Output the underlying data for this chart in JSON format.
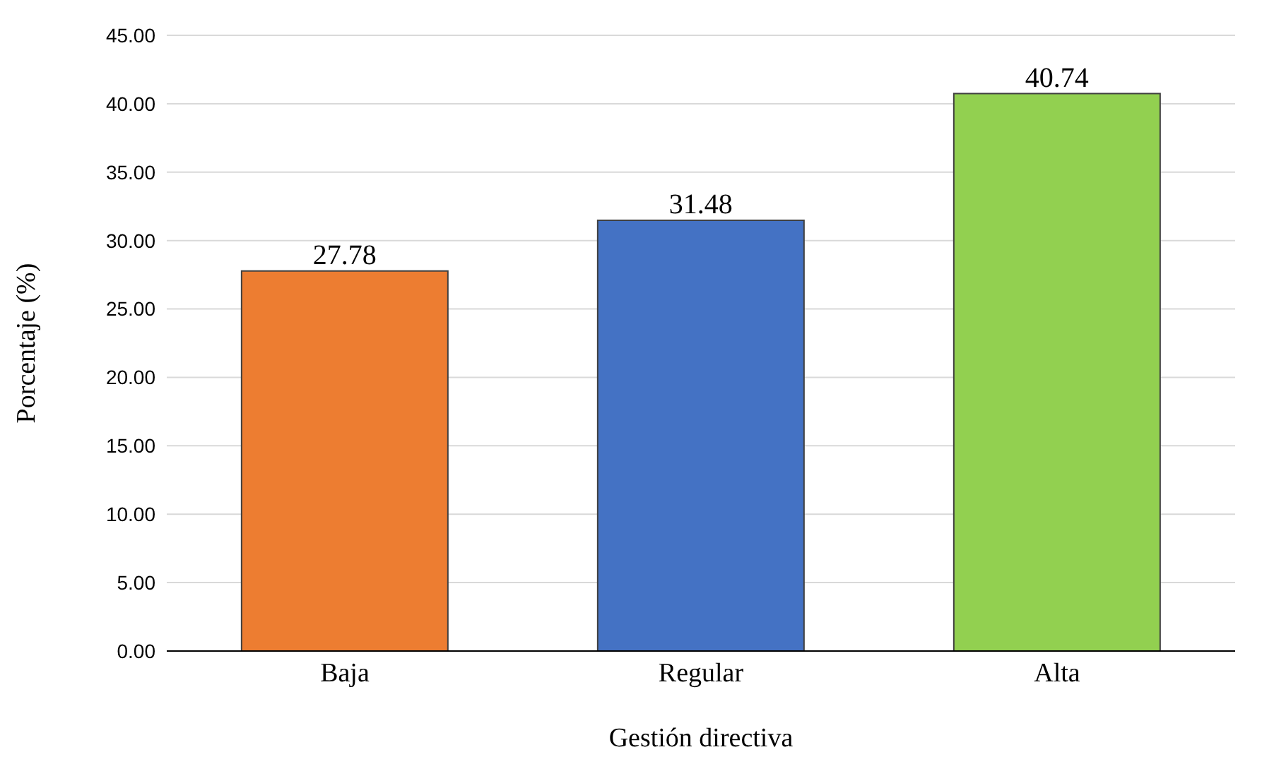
{
  "chart_data": {
    "type": "bar",
    "xlabel": "Gestión directiva",
    "ylabel": "Porcentaje (%)",
    "categories": [
      "Baja",
      "Regular",
      "Alta"
    ],
    "values": [
      27.78,
      31.48,
      40.74
    ],
    "colors": [
      "#ed7d31",
      "#4472c4",
      "#92d050"
    ],
    "ylim": [
      0,
      45
    ],
    "yticks": [
      {
        "value": 0,
        "label": "0.00"
      },
      {
        "value": 5,
        "label": "5.00"
      },
      {
        "value": 10,
        "label": "10.00"
      },
      {
        "value": 15,
        "label": "15.00"
      },
      {
        "value": 20,
        "label": "20.00"
      },
      {
        "value": 25,
        "label": "25.00"
      },
      {
        "value": 30,
        "label": "30.00"
      },
      {
        "value": 35,
        "label": "35.00"
      },
      {
        "value": 40,
        "label": "40.00"
      },
      {
        "value": 45,
        "label": "45.00"
      }
    ],
    "grid": "y",
    "data_labels": true
  }
}
